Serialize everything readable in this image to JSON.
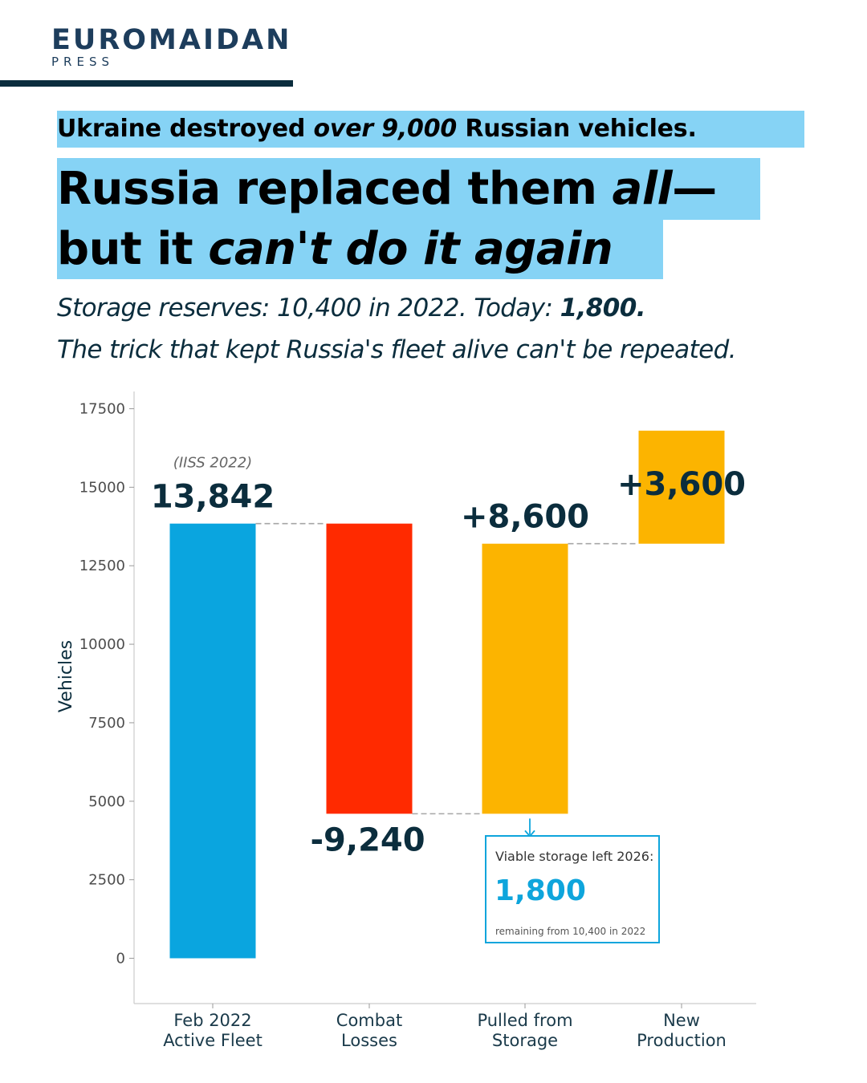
{
  "brand": {
    "name": "EUROMAIDAN",
    "sub": "PRESS"
  },
  "headline": {
    "line1_a": "Ukraine destroyed ",
    "line1_em": "over 9,000",
    "line1_b": " Russian vehicles.",
    "line2_a": "Russia replaced them ",
    "line2_em": "all",
    "line2_b": "—",
    "line3_a": "but it ",
    "line3_em": "can't do it again"
  },
  "subhead": {
    "line1_a": "Storage reserves: 10,400 in 2022. Today: ",
    "line1_b": "1,800.",
    "line2": "The trick that kept Russia's fleet alive can't be repeated."
  },
  "colors": {
    "highlight": "#86d3f5",
    "blue": "#0aa5df",
    "red": "#ff2a00",
    "orange": "#fcb400",
    "text": "#0b2d3d",
    "connector": "#a6a6a6"
  },
  "chart_data": {
    "type": "waterfall",
    "ylabel": "Vehicles",
    "ylim": [
      -1500,
      17500
    ],
    "yticks": [
      0,
      2500,
      5000,
      7500,
      10000,
      12500,
      15000,
      17500
    ],
    "grid": false,
    "categories": [
      [
        "Feb 2022",
        "Active Fleet"
      ],
      [
        "Combat",
        "Losses"
      ],
      [
        "Pulled from",
        "Storage"
      ],
      [
        "New",
        "Production"
      ]
    ],
    "steps": [
      {
        "start": 0,
        "end": 13842,
        "label": "13,842",
        "color": "#0aa5df",
        "note": "(IISS 2022)"
      },
      {
        "start": 13842,
        "end": 4602,
        "label": "-9,240",
        "color": "#ff2a00"
      },
      {
        "start": 4602,
        "end": 13202,
        "label": "+8,600",
        "color": "#fcb400"
      },
      {
        "start": 13202,
        "end": 16802,
        "label": "+3,600",
        "color": "#fcb400"
      }
    ],
    "callout": {
      "title": "Viable storage left 2026:",
      "value": "1,800",
      "caption": "remaining from 10,400 in 2022"
    }
  }
}
